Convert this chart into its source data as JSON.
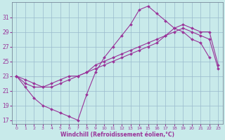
{
  "xlabel": "Windchill (Refroidissement éolien,°C)",
  "bg_color": "#c8eaea",
  "line_color": "#993399",
  "grid_color": "#9abacc",
  "xlim": [
    -0.5,
    23.5
  ],
  "ylim": [
    16.5,
    33.0
  ],
  "yticks": [
    17,
    19,
    21,
    23,
    25,
    27,
    29,
    31
  ],
  "xticks": [
    0,
    1,
    2,
    3,
    4,
    5,
    6,
    7,
    8,
    9,
    10,
    11,
    12,
    13,
    14,
    15,
    16,
    17,
    18,
    19,
    20,
    21,
    22,
    23
  ],
  "line1_x": [
    0,
    1,
    2,
    3,
    4,
    5,
    6,
    7,
    8,
    9,
    10,
    11,
    12,
    13,
    14,
    15,
    16,
    17,
    18,
    19,
    20,
    21,
    22
  ],
  "line1_y": [
    23.0,
    21.5,
    20.0,
    19.0,
    18.5,
    18.0,
    17.5,
    17.0,
    20.5,
    23.5,
    25.5,
    27.0,
    28.5,
    30.0,
    32.0,
    32.5,
    31.5,
    30.5,
    29.5,
    29.0,
    28.0,
    27.5,
    25.5
  ],
  "line2_x": [
    0,
    1,
    2,
    3,
    4,
    5,
    6,
    7,
    8,
    9,
    10,
    11,
    12,
    13,
    14,
    15,
    16,
    17,
    18,
    19,
    20,
    21,
    22,
    23
  ],
  "line2_y": [
    23.0,
    22.0,
    21.5,
    21.5,
    22.0,
    22.5,
    23.0,
    23.0,
    23.5,
    24.5,
    25.0,
    25.5,
    26.0,
    26.5,
    27.0,
    27.5,
    28.0,
    28.5,
    29.0,
    29.5,
    29.0,
    28.5,
    28.0,
    24.0
  ],
  "line3_x": [
    0,
    1,
    2,
    3,
    4,
    5,
    6,
    7,
    8,
    9,
    10,
    11,
    12,
    13,
    14,
    15,
    16,
    17,
    18,
    19,
    20,
    21,
    22,
    23
  ],
  "line3_y": [
    23.0,
    22.5,
    22.0,
    21.5,
    21.5,
    22.0,
    22.5,
    23.0,
    23.5,
    24.0,
    24.5,
    25.0,
    25.5,
    26.0,
    26.5,
    27.0,
    27.5,
    28.5,
    29.5,
    30.0,
    29.5,
    29.0,
    29.0,
    24.5
  ],
  "marker": "D",
  "markersize": 2,
  "linewidth": 0.8
}
